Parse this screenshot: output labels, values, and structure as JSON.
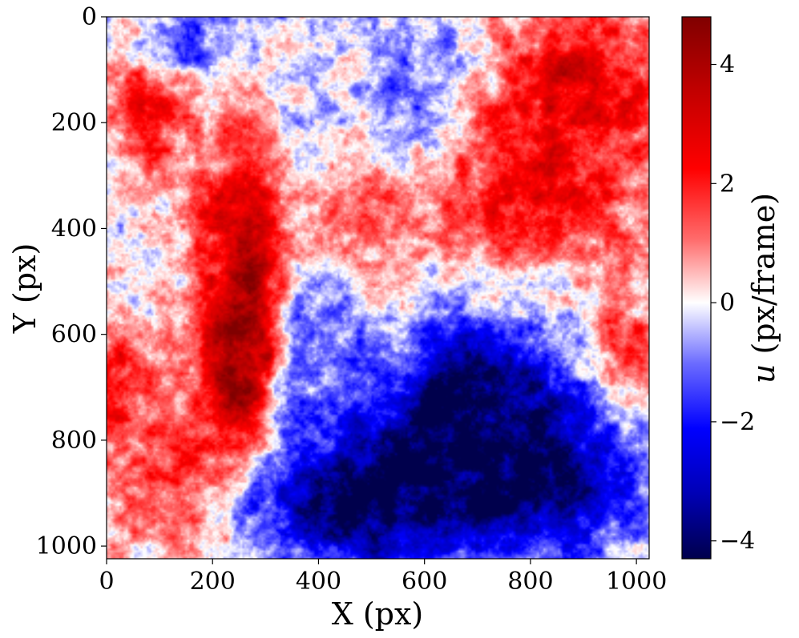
{
  "chart_data": {
    "type": "heatmap",
    "title": "",
    "xlabel": "X (px)",
    "ylabel": "Y (px)",
    "xlim": [
      0,
      1024
    ],
    "ylim": [
      0,
      1024
    ],
    "y_inverted": true,
    "x_ticks": [
      "0",
      "200",
      "400",
      "600",
      "800",
      "1000"
    ],
    "y_ticks": [
      "0",
      "200",
      "400",
      "600",
      "800",
      "1000"
    ],
    "x_tick_values": [
      0,
      200,
      400,
      600,
      800,
      1000
    ],
    "y_tick_values": [
      0,
      200,
      400,
      600,
      800,
      1000
    ],
    "colormap": "seismic",
    "colorbar": {
      "label_symbol": "u",
      "label_units": "(px/frame)",
      "vmin": -4.3,
      "vmax": 4.8,
      "ticks": [
        "−4",
        "−2",
        "0",
        "2",
        "4"
      ],
      "tick_values": [
        -4,
        -2,
        0,
        2,
        4
      ]
    },
    "grid": false,
    "field_regions": [
      {
        "x": 75,
        "y": 140,
        "u": 2.6,
        "sx": 70,
        "sy": 90
      },
      {
        "x": 260,
        "y": 470,
        "u": 3.8,
        "sx": 60,
        "sy": 170
      },
      {
        "x": 230,
        "y": 700,
        "u": 2.8,
        "sx": 55,
        "sy": 110
      },
      {
        "x": 30,
        "y": 700,
        "u": 2.2,
        "sx": 50,
        "sy": 80
      },
      {
        "x": 120,
        "y": 900,
        "u": 2.0,
        "sx": 80,
        "sy": 90
      },
      {
        "x": 900,
        "y": 100,
        "u": 2.6,
        "sx": 130,
        "sy": 110
      },
      {
        "x": 800,
        "y": 330,
        "u": 2.4,
        "sx": 170,
        "sy": 120
      },
      {
        "x": 990,
        "y": 660,
        "u": 2.3,
        "sx": 50,
        "sy": 80
      },
      {
        "x": 450,
        "y": 330,
        "u": 1.4,
        "sx": 90,
        "sy": 80
      },
      {
        "x": 130,
        "y": 60,
        "u": -2.6,
        "sx": 90,
        "sy": 45
      },
      {
        "x": 600,
        "y": 150,
        "u": -1.6,
        "sx": 90,
        "sy": 110
      },
      {
        "x": 380,
        "y": 280,
        "u": -1.3,
        "sx": 45,
        "sy": 100
      },
      {
        "x": 380,
        "y": 600,
        "u": -1.3,
        "sx": 70,
        "sy": 90
      },
      {
        "x": 690,
        "y": 720,
        "u": -3.6,
        "sx": 110,
        "sy": 120
      },
      {
        "x": 520,
        "y": 870,
        "u": -3.2,
        "sx": 170,
        "sy": 90
      },
      {
        "x": 820,
        "y": 860,
        "u": -3.3,
        "sx": 140,
        "sy": 110
      },
      {
        "x": 450,
        "y": 960,
        "u": -2.0,
        "sx": 120,
        "sy": 60
      }
    ]
  }
}
